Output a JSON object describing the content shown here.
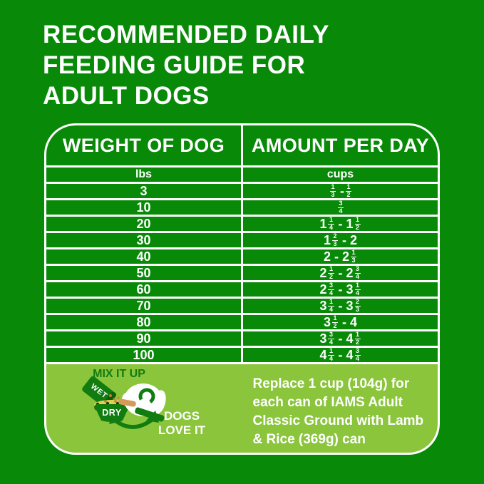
{
  "title": {
    "lines": [
      "RECOMMENDED DAILY",
      "FEEDING GUIDE FOR",
      "ADULT DOGS"
    ]
  },
  "chart_data": {
    "type": "table",
    "title": "RECOMMENDED DAILY FEEDING GUIDE FOR ADULT DOGS",
    "column_headers": [
      "WEIGHT OF DOG",
      "AMOUNT PER DAY"
    ],
    "unit_row": [
      "lbs",
      "cups"
    ],
    "rows": [
      [
        "3",
        "1/3 - 1/2"
      ],
      [
        "10",
        "3/4"
      ],
      [
        "20",
        "1 1/4 - 1 1/2"
      ],
      [
        "30",
        "1 2/3 - 2"
      ],
      [
        "40",
        "2 - 2 1/3"
      ],
      [
        "50",
        "2 1/2 - 2 3/4"
      ],
      [
        "60",
        "2 3/4 - 3 1/4"
      ],
      [
        "70",
        "3 1/4 - 3 2/3"
      ],
      [
        "80",
        "3 1/2 - 4"
      ],
      [
        "90",
        "3 3/4 - 4 1/2"
      ],
      [
        "100",
        "4 1/4 - 4 3/4"
      ]
    ]
  },
  "footer": {
    "mix_it_up": "MIX IT UP",
    "wet": "WET",
    "dry": "DRY",
    "dogs_love_it": "DOGS LOVE IT",
    "note_lines": [
      "Replace 1 cup (104g) for",
      "each can of IAMS Adult",
      "Classic Ground with Lamb",
      "& Rice (369g) can"
    ]
  },
  "colors": {
    "background_green": "#088a08",
    "row_green": "#088a08",
    "light_green": "#8ac53c",
    "accent_green": "#117c10",
    "text_white": "#ffffff",
    "tan": "#d49a5a",
    "kibble_band": "#e0cf52",
    "kibble_dark": "#283312"
  }
}
